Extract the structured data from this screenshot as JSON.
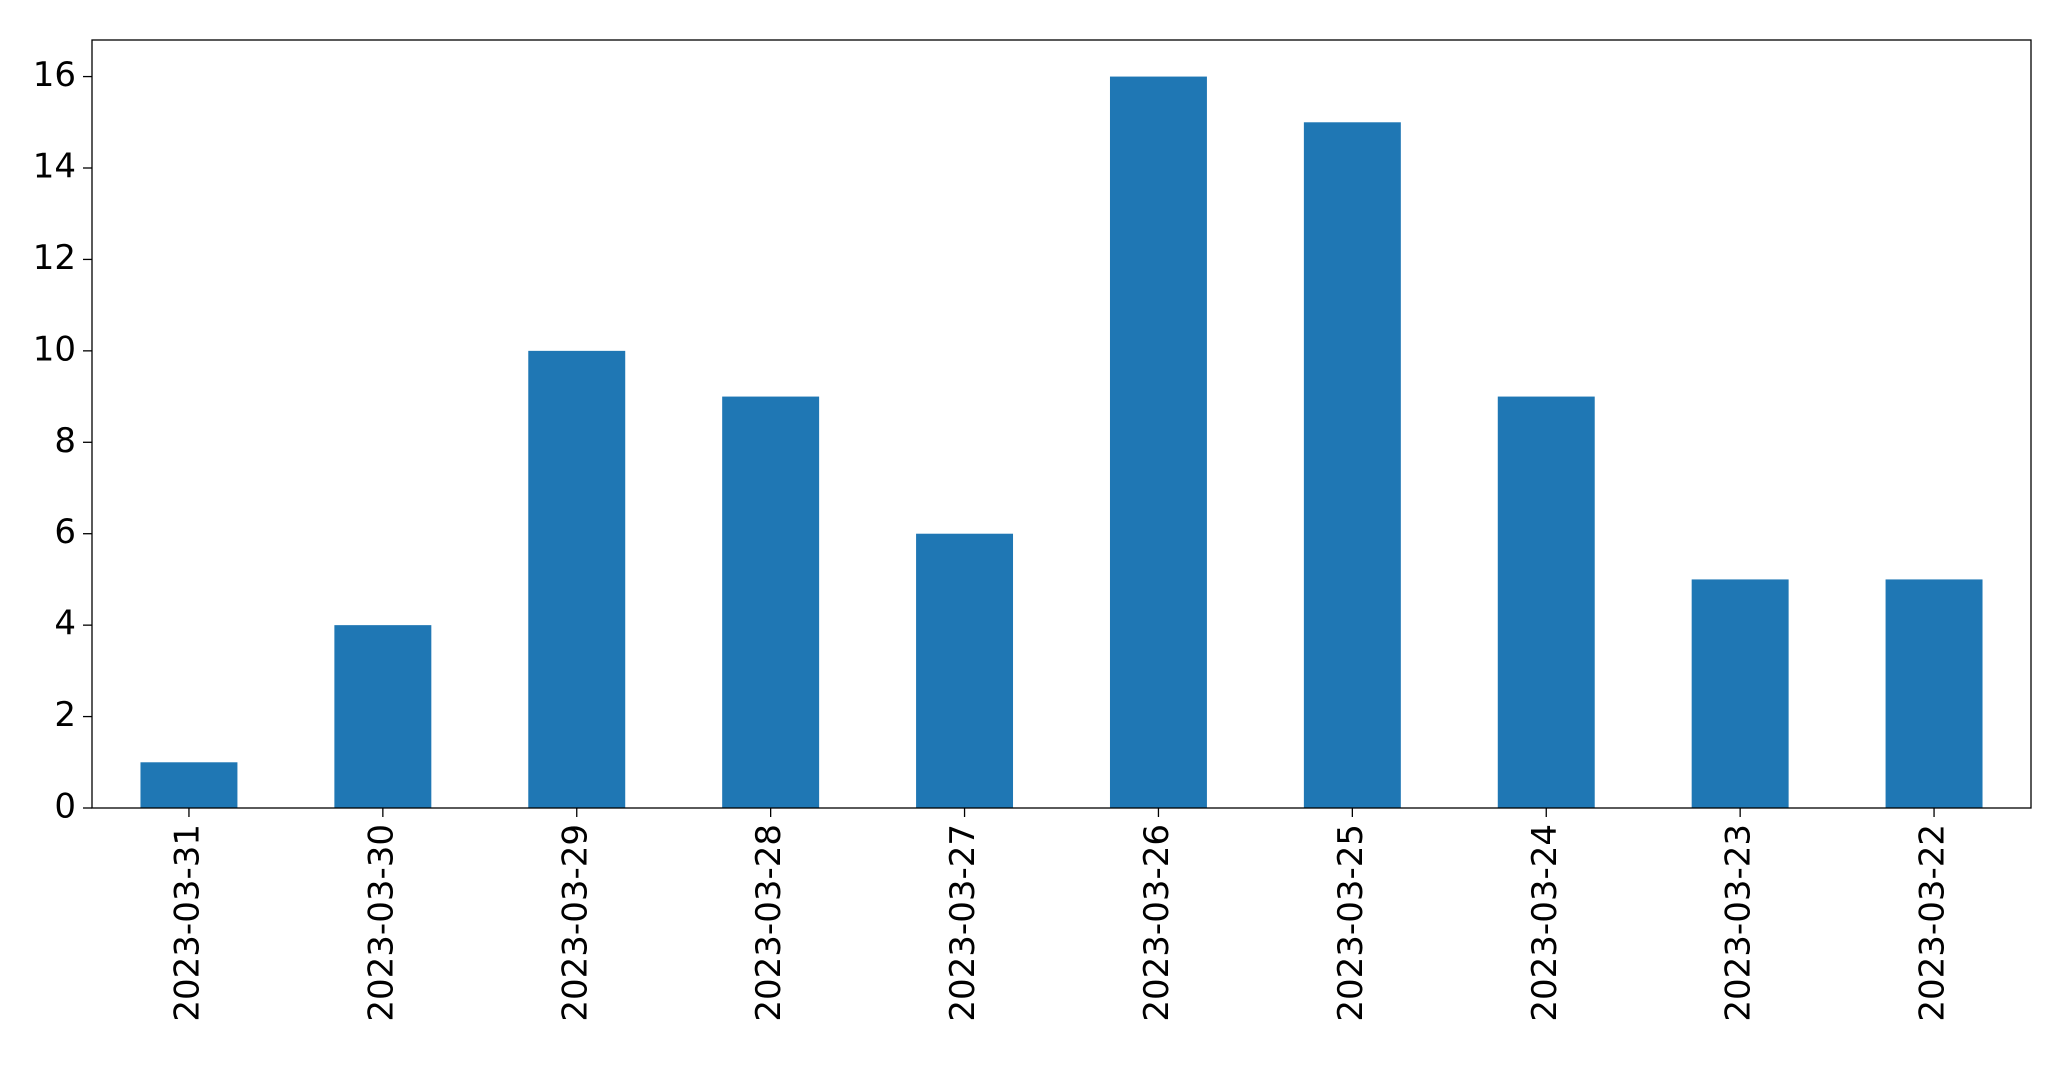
{
  "chart_data": {
    "type": "bar",
    "categories": [
      "2023-03-31",
      "2023-03-30",
      "2023-03-29",
      "2023-03-28",
      "2023-03-27",
      "2023-03-26",
      "2023-03-25",
      "2023-03-24",
      "2023-03-23",
      "2023-03-22"
    ],
    "values": [
      1,
      4,
      10,
      9,
      6,
      16,
      15,
      9,
      5,
      5
    ],
    "color": "#1f77b4",
    "ylim": [
      0,
      16.8
    ],
    "yticks": [
      0,
      2,
      4,
      6,
      8,
      10,
      12,
      14,
      16
    ],
    "grid": false
  }
}
